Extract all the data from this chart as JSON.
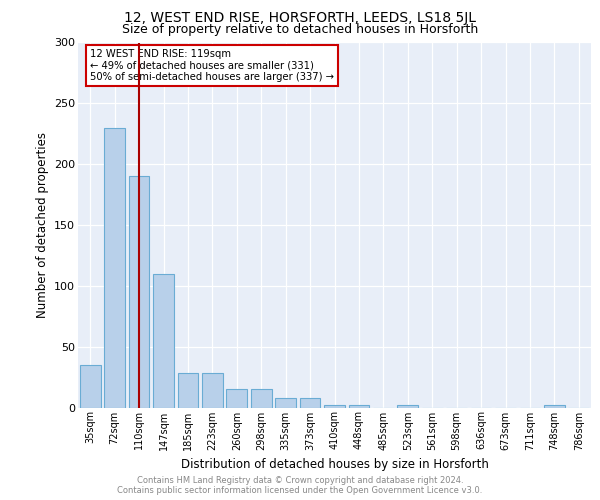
{
  "title1": "12, WEST END RISE, HORSFORTH, LEEDS, LS18 5JL",
  "title2": "Size of property relative to detached houses in Horsforth",
  "xlabel": "Distribution of detached houses by size in Horsforth",
  "ylabel": "Number of detached properties",
  "categories": [
    "35sqm",
    "72sqm",
    "110sqm",
    "147sqm",
    "185sqm",
    "223sqm",
    "260sqm",
    "298sqm",
    "335sqm",
    "373sqm",
    "410sqm",
    "448sqm",
    "485sqm",
    "523sqm",
    "561sqm",
    "598sqm",
    "636sqm",
    "673sqm",
    "711sqm",
    "748sqm",
    "786sqm"
  ],
  "values": [
    35,
    230,
    190,
    110,
    28,
    28,
    15,
    15,
    8,
    8,
    2,
    2,
    0,
    2,
    0,
    0,
    0,
    0,
    0,
    2,
    0
  ],
  "bar_color": "#b8d0ea",
  "bar_edge_color": "#6aacd4",
  "vline_x": 2,
  "vline_color": "#aa0000",
  "annotation_lines": [
    "12 WEST END RISE: 119sqm",
    "← 49% of detached houses are smaller (331)",
    "50% of semi-detached houses are larger (337) →"
  ],
  "ylim": [
    0,
    300
  ],
  "yticks": [
    0,
    50,
    100,
    150,
    200,
    250,
    300
  ],
  "bg_color": "#e8eef8",
  "footer_line1": "Contains HM Land Registry data © Crown copyright and database right 2024.",
  "footer_line2": "Contains public sector information licensed under the Open Government Licence v3.0.",
  "title1_fontsize": 10,
  "title2_fontsize": 9,
  "annotation_box_edge": "#cc0000"
}
